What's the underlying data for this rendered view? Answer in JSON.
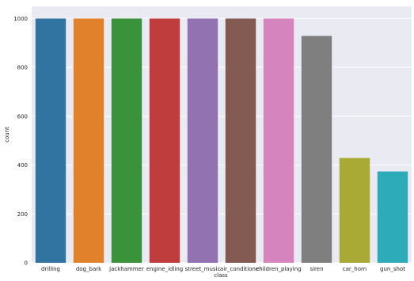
{
  "chart_data": {
    "type": "bar",
    "categories": [
      "drilling",
      "dog_bark",
      "jackhammer",
      "engine_idling",
      "street_music",
      "air_conditioner",
      "children_playing",
      "siren",
      "car_horn",
      "gun_shot"
    ],
    "values": [
      1000,
      1000,
      1000,
      1000,
      1000,
      1000,
      1000,
      929,
      429,
      374
    ],
    "colors": [
      "#3274a1",
      "#e1812c",
      "#3a923a",
      "#c03d3e",
      "#9372b2",
      "#845b53",
      "#d684bd",
      "#7f7f7f",
      "#a9aa35",
      "#2eabb8"
    ],
    "xlabel": "class",
    "ylabel": "count",
    "ylim": [
      0,
      1050
    ],
    "yticks": [
      0,
      200,
      400,
      600,
      800,
      1000
    ],
    "grid": true,
    "background": "#eaeaf2"
  }
}
